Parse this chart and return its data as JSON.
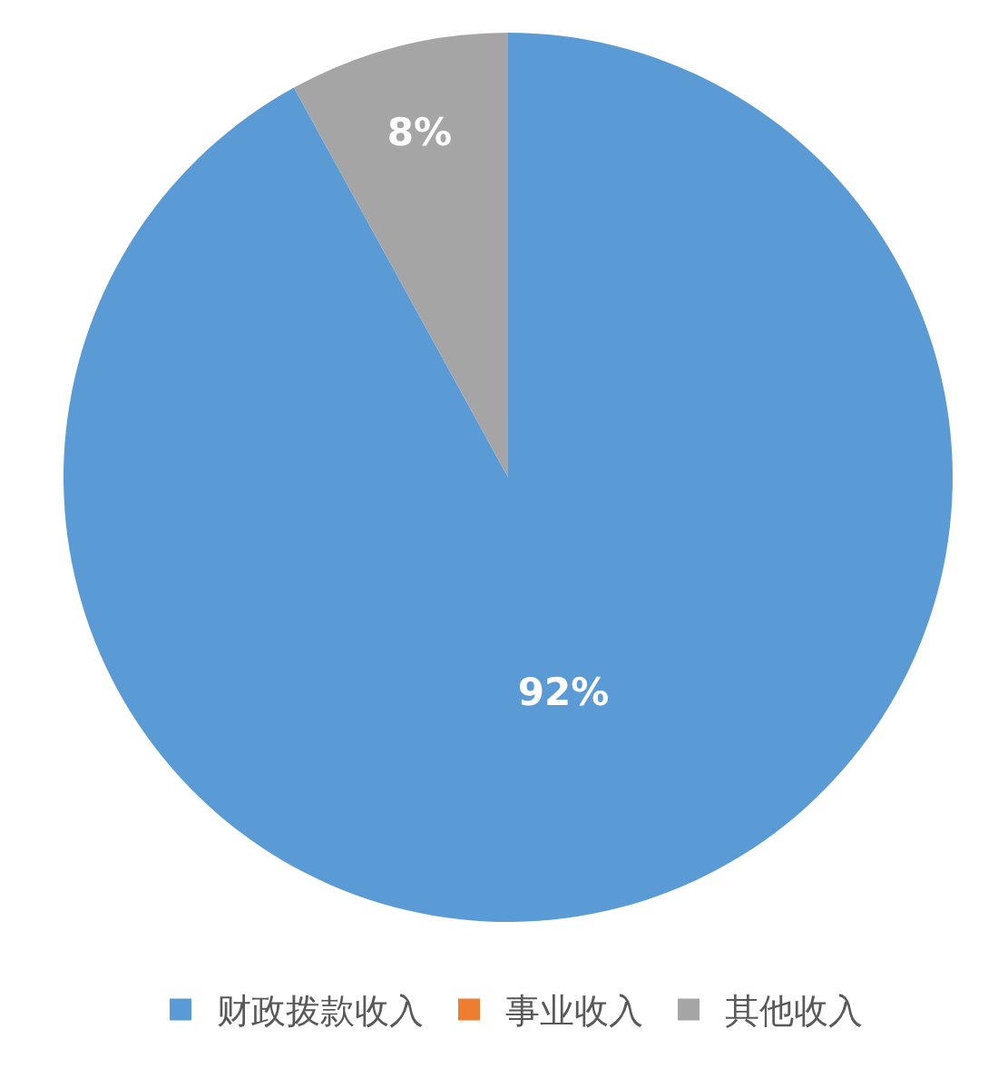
{
  "chart_data": {
    "type": "pie",
    "categories": [
      "财政拨款收入",
      "事业收入",
      "其他收入"
    ],
    "values": [
      92,
      0,
      8
    ],
    "colors": [
      "#5b9bd5",
      "#ed7d31",
      "#a5a5a5"
    ],
    "value_labels": [
      "92%",
      null,
      "8%"
    ],
    "legend": "bottom"
  }
}
